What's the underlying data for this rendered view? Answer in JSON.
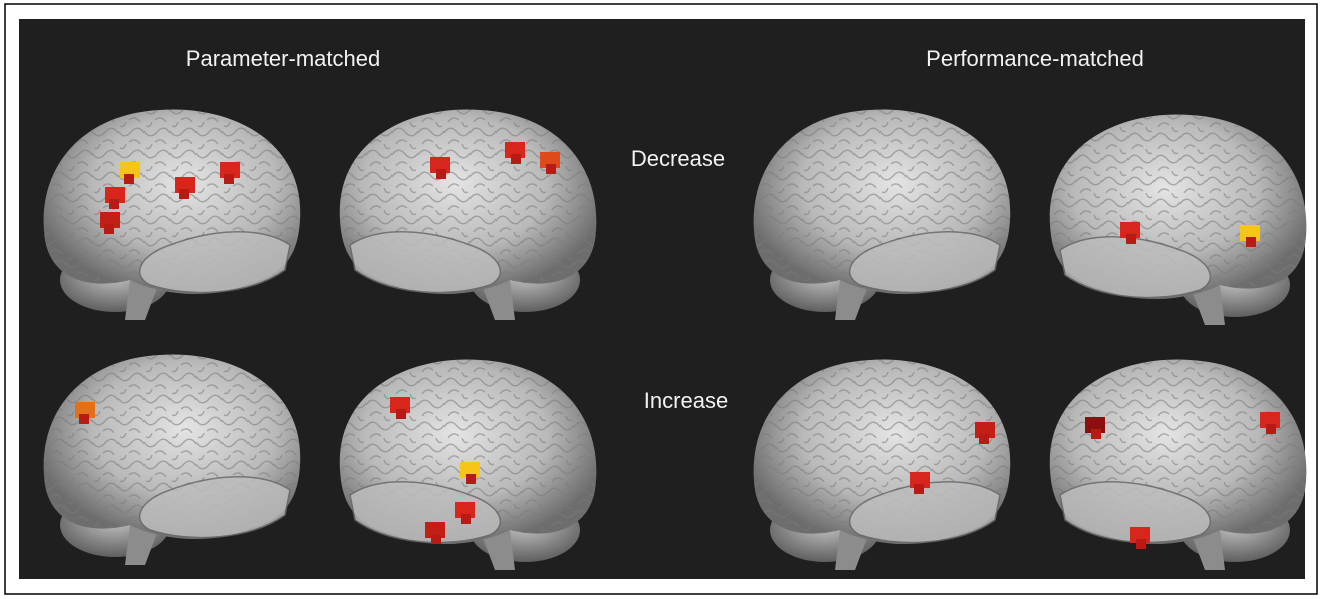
{
  "panel": {
    "columns": [
      "Parameter-matched",
      "Performance-matched"
    ],
    "rows": [
      "Decrease",
      "Increase"
    ]
  }
}
